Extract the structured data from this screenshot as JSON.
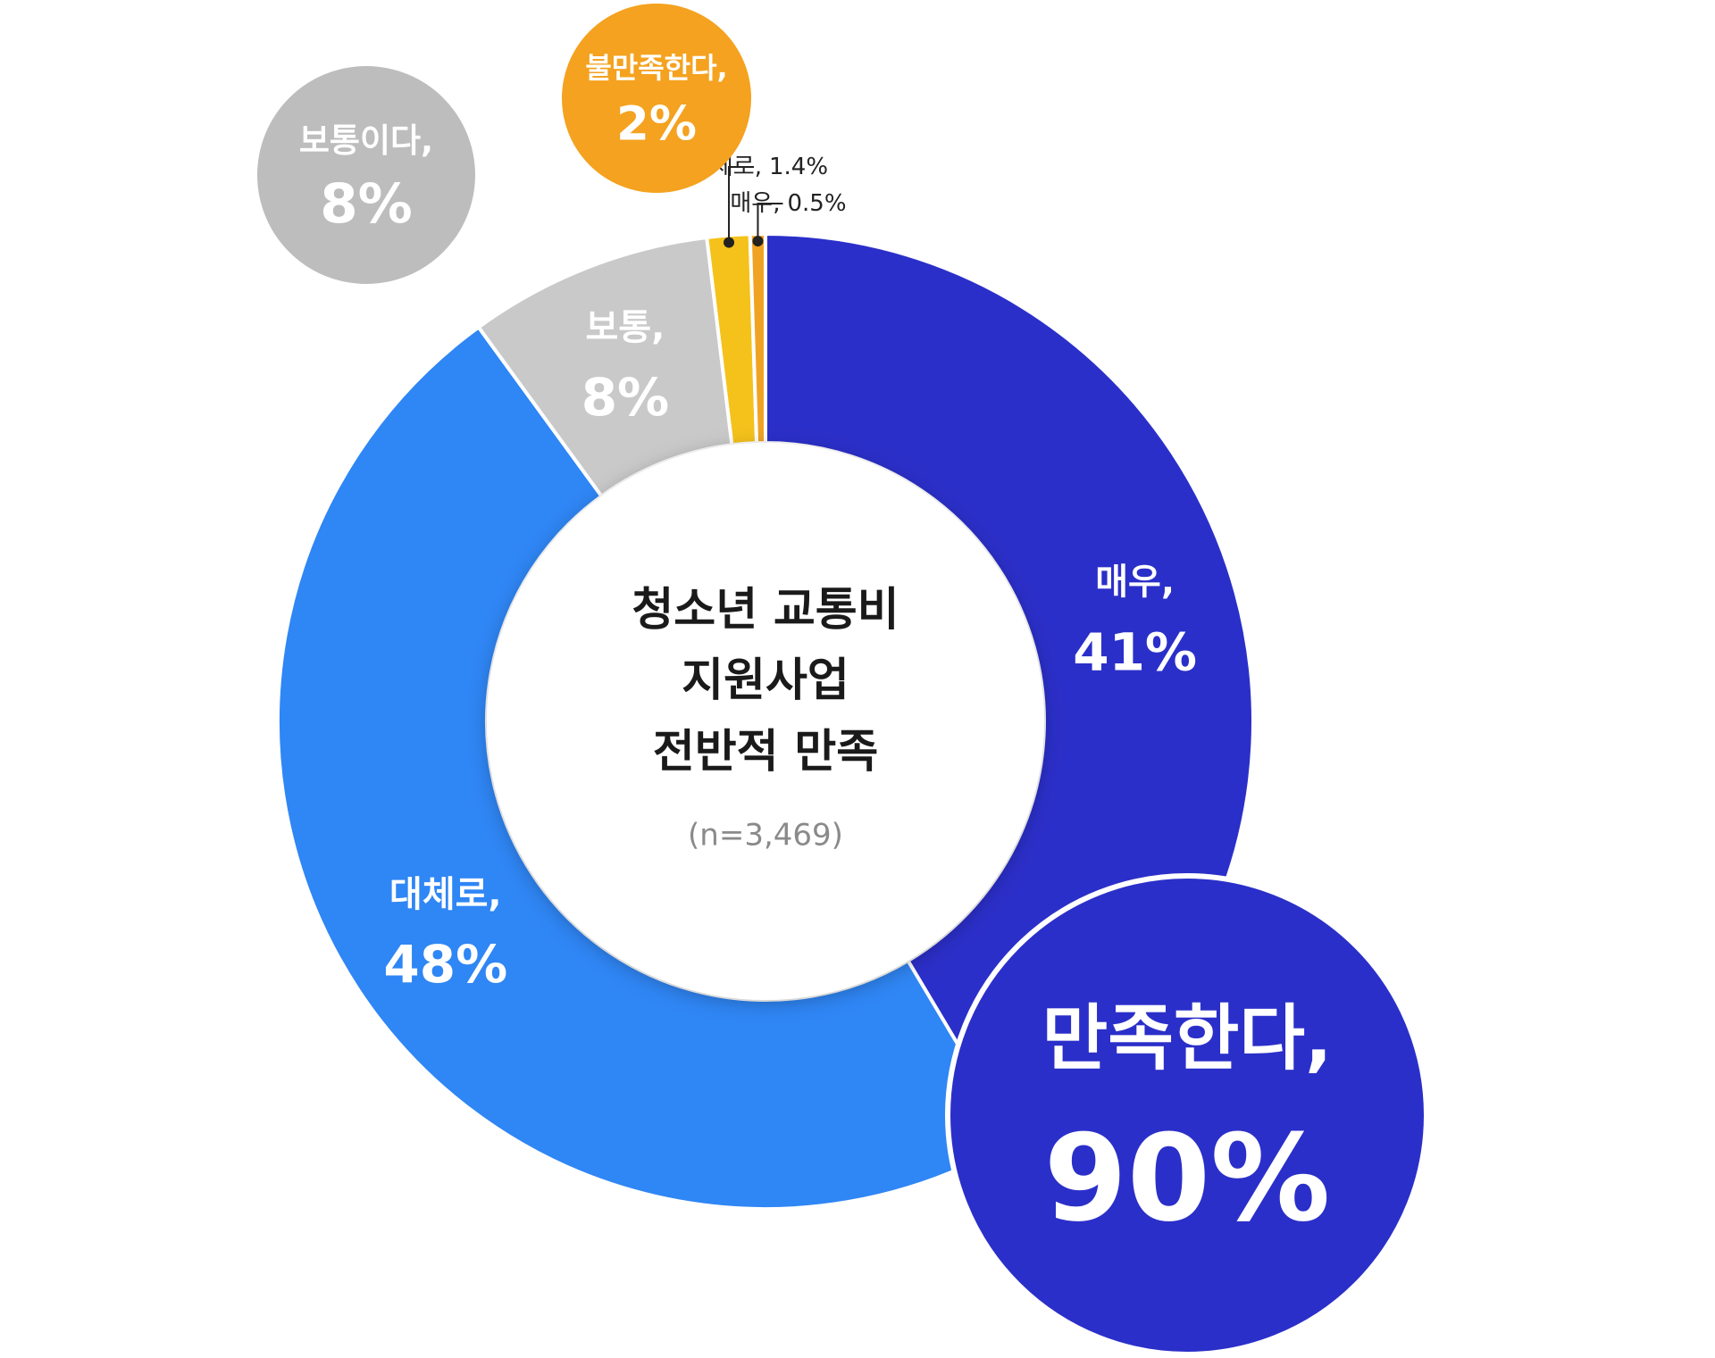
{
  "chart_data": {
    "type": "donut",
    "title": [
      "청소년 교통비",
      "지원사업",
      "전반적 만족"
    ],
    "subtitle": "(n=3,469)",
    "categories": [
      "매우,",
      "대체로,",
      "보통,",
      "대체로,",
      "매우,"
    ],
    "values": [
      41,
      48,
      8,
      1.4,
      0.5
    ],
    "value_labels": [
      "41%",
      "48%",
      "8%",
      "1.4%",
      "0.5%"
    ],
    "colors": [
      "#2b2fc9",
      "#2f86f5",
      "#c9c9c9",
      "#f5c21b",
      "#f0a323"
    ],
    "summary": [
      {
        "label": "보통이다,",
        "value": 8,
        "value_label": "8%",
        "color": "#bdbdbd"
      },
      {
        "label": "불만족한다,",
        "value": 2,
        "value_label": "2%",
        "color": "#f4a21f"
      },
      {
        "label": "만족한다,",
        "value": 90,
        "value_label": "90%",
        "color": "#2b2fc9"
      }
    ]
  }
}
